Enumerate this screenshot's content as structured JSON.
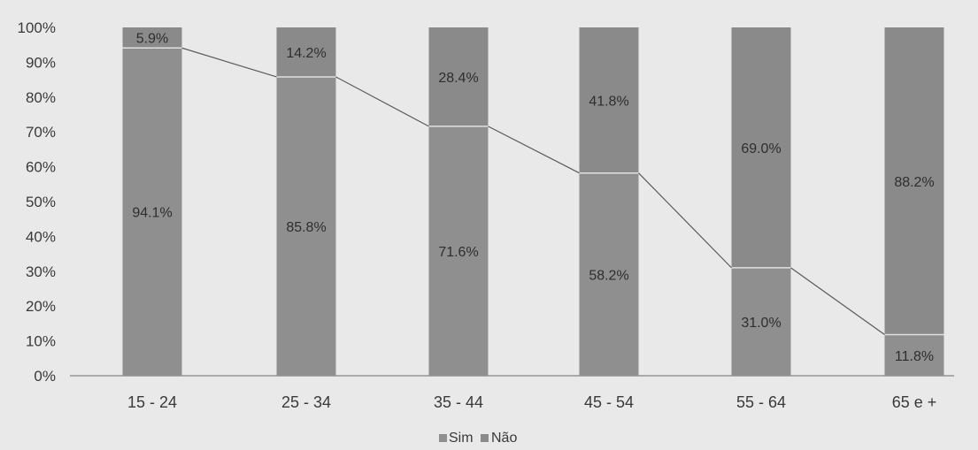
{
  "chart_data": {
    "type": "bar",
    "stacked": true,
    "normalized_100": true,
    "categories": [
      "15 - 24",
      "25 - 34",
      "35 - 44",
      "45 - 54",
      "55 - 64",
      "65 e +"
    ],
    "series": [
      {
        "name": "Sim",
        "values": [
          94.1,
          85.8,
          71.6,
          58.2,
          31.0,
          11.8
        ]
      },
      {
        "name": "Não",
        "values": [
          5.9,
          14.2,
          28.4,
          41.8,
          69.0,
          88.2
        ]
      }
    ],
    "data_labels": {
      "Sim": [
        "94.1%",
        "85.8%",
        "71.6%",
        "58.2%",
        "31.0%",
        "11.8%"
      ],
      "Não": [
        "5.9%",
        "14.2%",
        "28.4%",
        "41.8%",
        "69.0%",
        "88.2%"
      ]
    },
    "yticks": [
      "0%",
      "10%",
      "20%",
      "30%",
      "40%",
      "50%",
      "60%",
      "70%",
      "80%",
      "90%",
      "100%"
    ],
    "ylim": [
      0,
      100
    ],
    "connector_line": "series Sim top edges",
    "grid": false,
    "legend": {
      "position": "bottom",
      "entries": [
        "Sim",
        "Não"
      ]
    },
    "colors": {
      "Sim": "#8f8f8f",
      "Não": "#8a8a8a",
      "background": "#e9e9e9",
      "line": "#5a5a5a"
    }
  }
}
